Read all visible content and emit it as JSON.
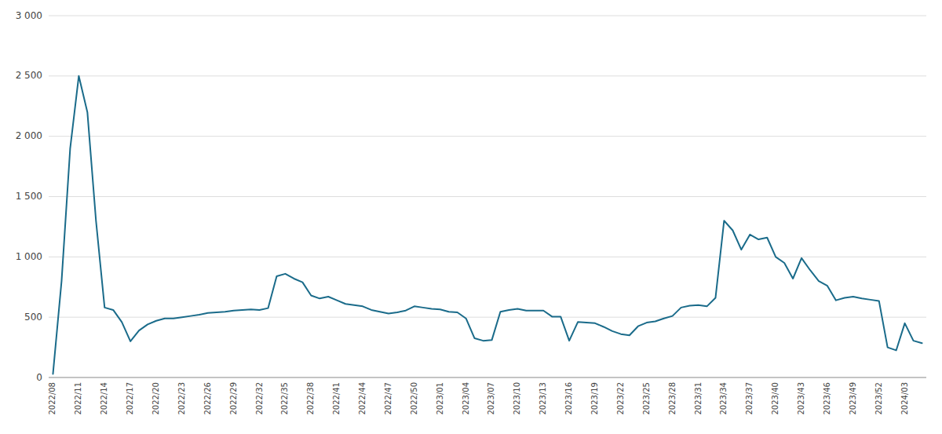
{
  "chart_data": {
    "type": "line",
    "color": "#1a6b8a",
    "grid": true,
    "ylim": [
      0,
      3000
    ],
    "yticks": [
      0,
      500,
      {
        "value": 1000,
        "label": "1 000"
      },
      {
        "value": 1500,
        "label": "1 500"
      },
      {
        "value": 2000,
        "label": "2 000"
      },
      {
        "value": 2500,
        "label": "2 500"
      },
      {
        "value": 3000,
        "label": "3 000"
      }
    ],
    "categories": [
      "2022/08",
      null,
      null,
      "2022/11",
      null,
      null,
      "2022/14",
      null,
      null,
      "2022/17",
      null,
      null,
      "2022/20",
      null,
      null,
      "2022/23",
      null,
      null,
      "2022/26",
      null,
      null,
      "2022/29",
      null,
      null,
      "2022/32",
      null,
      null,
      "2022/35",
      null,
      null,
      "2022/38",
      null,
      null,
      "2022/41",
      null,
      null,
      "2022/44",
      null,
      null,
      "2022/47",
      null,
      null,
      "2022/50",
      null,
      null,
      "2023/01",
      null,
      null,
      "2023/04",
      null,
      null,
      "2023/07",
      null,
      null,
      "2023/10",
      null,
      null,
      "2023/13",
      null,
      null,
      "2023/16",
      null,
      null,
      "2023/19",
      null,
      null,
      "2023/22",
      null,
      null,
      "2023/25",
      null,
      null,
      "2023/28",
      null,
      null,
      "2023/31",
      null,
      null,
      "2023/34",
      null,
      null,
      "2023/37",
      null,
      null,
      "2023/40",
      null,
      null,
      "2023/43",
      null,
      null,
      "2023/46",
      null,
      null,
      "2023/49",
      null,
      null,
      "2023/52",
      null,
      null,
      "2024/03",
      null,
      null
    ],
    "values": [
      30,
      800,
      1900,
      2500,
      2200,
      1300,
      580,
      560,
      460,
      300,
      390,
      440,
      470,
      490,
      490,
      500,
      510,
      520,
      535,
      540,
      545,
      555,
      560,
      565,
      560,
      575,
      840,
      860,
      820,
      790,
      680,
      655,
      670,
      640,
      610,
      600,
      590,
      560,
      545,
      530,
      540,
      555,
      590,
      580,
      570,
      565,
      545,
      540,
      490,
      325,
      305,
      310,
      545,
      560,
      570,
      555,
      555,
      555,
      505,
      505,
      305,
      460,
      455,
      450,
      420,
      385,
      360,
      350,
      425,
      455,
      465,
      490,
      510,
      580,
      595,
      600,
      590,
      660,
      1300,
      1220,
      1060,
      1185,
      1145,
      1160,
      1000,
      950,
      820,
      990,
      890,
      800,
      760,
      640,
      660,
      670,
      655,
      645,
      635,
      250,
      225,
      450,
      305,
      285
    ]
  }
}
